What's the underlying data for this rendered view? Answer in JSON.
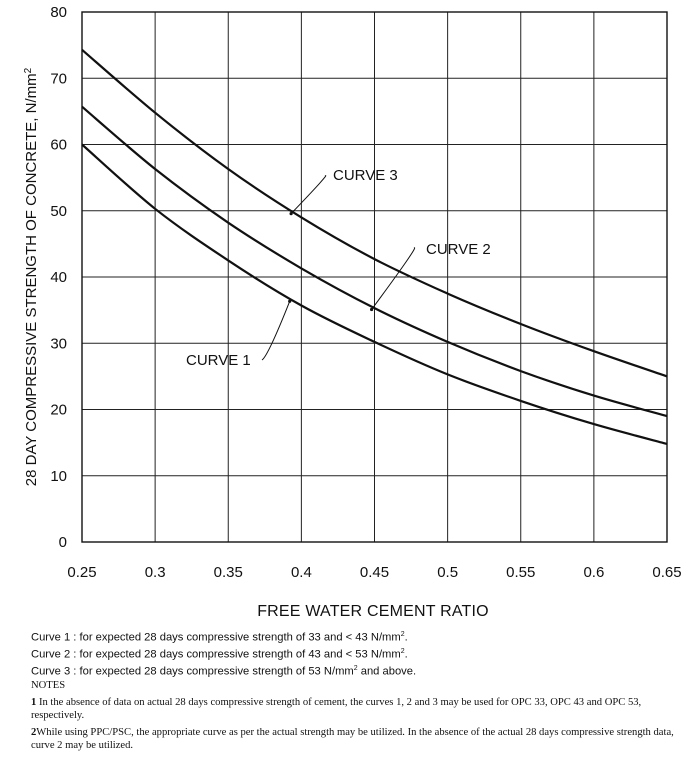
{
  "chart_data": {
    "type": "line",
    "xlabel": "FREE WATER CEMENT RATIO",
    "ylabel": "28 DAY COMPRESSIVE STRENGTH OF CONCRETE,  N/mm",
    "ylabel_superscript": "2",
    "xlim": [
      0.25,
      0.65
    ],
    "ylim": [
      0,
      80
    ],
    "x_ticks": [
      "0.25",
      "0.3",
      "0.35",
      "0.4",
      "0.45",
      "0.5",
      "0.55",
      "0.6",
      "0.65"
    ],
    "y_ticks": [
      "0",
      "10",
      "20",
      "30",
      "40",
      "50",
      "60",
      "70",
      "80"
    ],
    "grid": true,
    "series": [
      {
        "name": "CURVE 1",
        "x": [
          0.25,
          0.3,
          0.35,
          0.4,
          0.45,
          0.5,
          0.55,
          0.6,
          0.65
        ],
        "y": [
          60,
          50.3,
          42.5,
          35.7,
          30.2,
          25.3,
          21.3,
          17.8,
          14.8
        ]
      },
      {
        "name": "CURVE 2",
        "x": [
          0.25,
          0.3,
          0.35,
          0.4,
          0.45,
          0.5,
          0.55,
          0.6,
          0.65
        ],
        "y": [
          65.7,
          56.3,
          48.2,
          41.3,
          35.3,
          30.2,
          25.8,
          22.1,
          19.0
        ]
      },
      {
        "name": "CURVE 3",
        "x": [
          0.25,
          0.3,
          0.35,
          0.4,
          0.45,
          0.5,
          0.55,
          0.6,
          0.65
        ],
        "y": [
          74.3,
          64.8,
          56.3,
          49.0,
          42.7,
          37.5,
          32.9,
          28.8,
          25.0
        ]
      }
    ]
  },
  "legend": [
    {
      "prefix": "Curve 1 : for expected 28 days compressive strength of 33 and < 43 N/mm",
      "sup": "2",
      "suffix": "."
    },
    {
      "prefix": "Curve 2 : for expected 28 days compressive strength of 43 and < 53 N/mm",
      "sup": "2",
      "suffix": "."
    },
    {
      "prefix": "Curve 3 : for expected 28 days compressive strength of 53 N/mm",
      "sup": "2",
      "suffix": " and above."
    }
  ],
  "notes": {
    "title": "NOTES",
    "items": [
      {
        "num": "1",
        "text": "In the absence of data on actual 28 days compressive strength of cement, the curves 1, 2 and 3 may be used for OPC 33, OPC 43 and OPC 53, respectively."
      },
      {
        "num": "2",
        "text": "While using PPC/PSC, the appropriate curve as per the actual strength may be utilized. In the absence of the actual 28 days compressive strength data, curve 2 may be utilized."
      }
    ]
  }
}
